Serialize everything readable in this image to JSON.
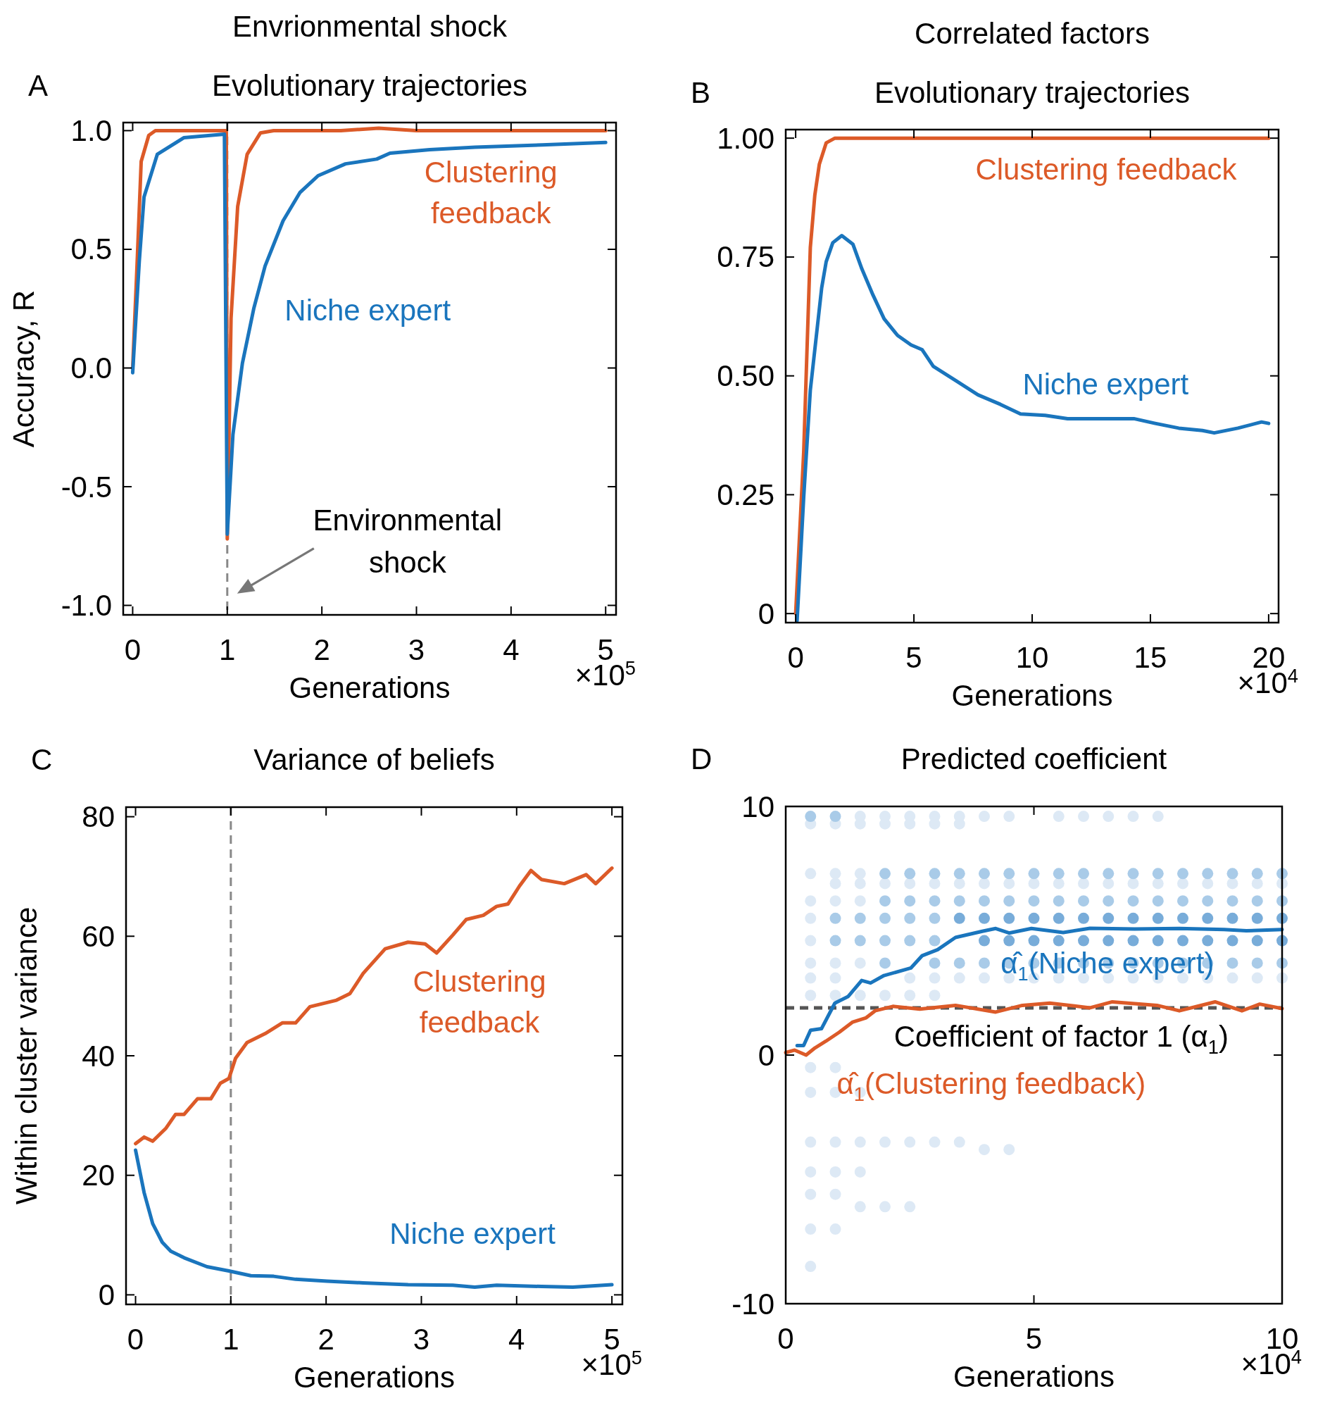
{
  "chart_data": [
    {
      "type": "line",
      "title": "Envrionmental shock",
      "subtitle": "Evolutionary trajectories",
      "xlabel": "Generations",
      "ylabel": "Accuracy, R",
      "xlim": [
        -0.1,
        5.11
      ],
      "xticks": [
        0,
        1,
        2,
        3,
        4,
        5
      ],
      "ylim": [
        -1.04,
        1.034
      ],
      "yticks": [
        {
          "value": 1,
          "label": "1.0"
        },
        {
          "value": 0.5,
          "label": "0.5"
        },
        {
          "value": 0,
          "label": "0.0"
        },
        {
          "value": -0.5,
          "label": "-0.5"
        },
        {
          "value": -1,
          "label": "-1.0"
        }
      ],
      "ref_lines": [
        {
          "axis": "x",
          "value": 1,
          "color": "#888888",
          "line_style": "dashed"
        }
      ],
      "annotations": [
        "A",
        "×10$^{5}$",
        {
          "text": "Environmental shock",
          "x": 1,
          "y": -0.95
        }
      ],
      "series": [
        {
          "name": "Clustering feedback",
          "color": "#dc5a28",
          "x": [
            0,
            0.05,
            0.09,
            0.17,
            0.24,
            0.5,
            0.8,
            0.99,
            1.0,
            1.04,
            1.11,
            1.21,
            1.35,
            1.49,
            1.8,
            2.2,
            2.6,
            3.0,
            3.4,
            3.8,
            4.2,
            4.6,
            5.0
          ],
          "values": [
            0,
            0.47,
            0.87,
            0.98,
            1.0,
            1.0,
            1.0,
            1.0,
            -0.72,
            0.21,
            0.68,
            0.9,
            0.99,
            1.0,
            1.0,
            1.0,
            1.01,
            1.0,
            1.0,
            1.0,
            1.0,
            1.0,
            1.0
          ]
        },
        {
          "name": "Niche expert",
          "color": "#1a75bd",
          "x": [
            0,
            0.07,
            0.12,
            0.26,
            0.54,
            0.97,
            1.0,
            1.06,
            1.16,
            1.28,
            1.4,
            1.59,
            1.77,
            1.96,
            2.25,
            2.58,
            2.72,
            3.14,
            3.62,
            4.33,
            5.0
          ],
          "values": [
            -0.02,
            0.45,
            0.72,
            0.9,
            0.97,
            0.985,
            -0.7,
            -0.28,
            0.02,
            0.25,
            0.43,
            0.62,
            0.74,
            0.81,
            0.86,
            0.88,
            0.905,
            0.92,
            0.93,
            0.94,
            0.95
          ]
        }
      ]
    },
    {
      "type": "line",
      "title": "Correlated factors",
      "subtitle": "Evolutionary trajectories",
      "xlabel": "Generations",
      "xlim": [
        -0.42,
        20.42
      ],
      "xticks": [
        0,
        5,
        10,
        15,
        20
      ],
      "ylim": [
        -0.019,
        1.018
      ],
      "yticks": [
        {
          "value": 1,
          "label": "1.00"
        },
        {
          "value": 0.75,
          "label": "0.75"
        },
        {
          "value": 0.5,
          "label": "0.50"
        },
        {
          "value": 0.25,
          "label": "0.25"
        },
        0
      ],
      "annotations": [
        "B",
        "×10$^{4}$"
      ],
      "series": [
        {
          "name": "Clustering feedback",
          "color": "#dc5a28",
          "x": [
            0,
            0.34,
            0.62,
            0.81,
            1.0,
            1.29,
            1.66,
            4,
            8,
            12,
            16,
            20
          ],
          "values": [
            0,
            0.34,
            0.77,
            0.88,
            0.945,
            0.99,
            1.0,
            1.0,
            1.0,
            1.0,
            1.0,
            1.0
          ]
        },
        {
          "name": "Niche expert",
          "color": "#1a75bd",
          "x": [
            0.06,
            0.34,
            0.62,
            0.91,
            1.1,
            1.29,
            1.57,
            1.95,
            2.42,
            2.8,
            3.27,
            3.74,
            4.31,
            4.88,
            5.35,
            5.82,
            6.77,
            7.71,
            8.66,
            9.51,
            10.55,
            11.5,
            12.4,
            14.3,
            15.2,
            16.2,
            17.2,
            17.7,
            18.7,
            19.7,
            20
          ],
          "values": [
            -0.015,
            0.245,
            0.47,
            0.6,
            0.685,
            0.74,
            0.78,
            0.795,
            0.777,
            0.725,
            0.67,
            0.62,
            0.585,
            0.565,
            0.555,
            0.52,
            0.49,
            0.46,
            0.44,
            0.42,
            0.417,
            0.41,
            0.41,
            0.41,
            0.4,
            0.39,
            0.385,
            0.38,
            0.39,
            0.403,
            0.4
          ]
        }
      ]
    },
    {
      "type": "line",
      "title": "Variance of beliefs",
      "xlabel": "Generations",
      "ylabel": "Within cluster variance",
      "xlim": [
        -0.1,
        5.11
      ],
      "xticks": [
        0,
        1,
        2,
        3,
        4,
        5
      ],
      "ylim": [
        -1.6,
        81.6
      ],
      "yticks": [
        0,
        20,
        40,
        60,
        80
      ],
      "ref_lines": [
        {
          "axis": "x",
          "value": 1,
          "color": "#888888",
          "line_style": "dashed"
        }
      ],
      "annotations": [
        "C",
        "×10$^{5}$"
      ],
      "series": [
        {
          "name": "Clustering feedback",
          "color": "#dc5a28",
          "x": [
            0,
            0.09,
            0.18,
            0.32,
            0.42,
            0.51,
            0.65,
            0.79,
            0.89,
            0.98,
            1.05,
            1.17,
            1.36,
            1.54,
            1.68,
            1.83,
            2.11,
            2.25,
            2.39,
            2.62,
            2.86,
            3.04,
            3.16,
            3.33,
            3.47,
            3.65,
            3.79,
            3.91,
            4.03,
            4.15,
            4.26,
            4.5,
            4.73,
            4.83,
            5.0
          ],
          "values": [
            25.3,
            26.4,
            25.7,
            27.9,
            30.2,
            30.2,
            32.8,
            32.8,
            35.4,
            36.2,
            39.6,
            42.2,
            43.7,
            45.5,
            45.5,
            48.2,
            49.3,
            50.4,
            53.8,
            57.9,
            59.0,
            58.7,
            57.2,
            60.2,
            62.8,
            63.5,
            65.0,
            65.4,
            68.4,
            71.0,
            69.5,
            68.8,
            70.3,
            68.8,
            71.4
          ]
        },
        {
          "name": "Niche expert",
          "color": "#1a75bd",
          "x": [
            0,
            0.09,
            0.18,
            0.28,
            0.37,
            0.51,
            0.75,
            0.98,
            1.21,
            1.45,
            1.68,
            2.01,
            2.39,
            2.86,
            3.33,
            3.56,
            3.79,
            4.26,
            4.59,
            5.0
          ],
          "values": [
            24.2,
            17.1,
            11.9,
            8.8,
            7.3,
            6.2,
            4.7,
            4.0,
            3.2,
            3.1,
            2.6,
            2.3,
            2.0,
            1.7,
            1.6,
            1.3,
            1.6,
            1.4,
            1.3,
            1.7
          ]
        }
      ]
    },
    {
      "type": "line",
      "title": "Predicted coefficient",
      "xlabel": "Generations",
      "xlim": [
        0,
        10
      ],
      "xticks": [
        0,
        5,
        10
      ],
      "ylim": [
        -10,
        10
      ],
      "yticks": [
        10,
        0,
        -10
      ],
      "ref_lines": [
        {
          "axis": "y",
          "value": 1.9,
          "label": "Coefficient of factor 1 (α$_{1}$)",
          "color": "#555555",
          "line_style": "dashed"
        }
      ],
      "annotations": [
        "D",
        "×10$^{4}$"
      ],
      "series": [
        {
          "type": "scatter",
          "color": "#dde9f5",
          "x": [
            0.5,
            1,
            1.5,
            2,
            2.5,
            3,
            3.5,
            1.5,
            2,
            2.5,
            3,
            3.5,
            4,
            4.5,
            5.5,
            6,
            6.5,
            7,
            7.5,
            0.5,
            1,
            1.5,
            1,
            1.5,
            2,
            2.5,
            3,
            3.5,
            4,
            4.5,
            5,
            5.5,
            6,
            6.5,
            7,
            7.5,
            8,
            8.5,
            9,
            9.5,
            10,
            0.5,
            1,
            1.5,
            0.5,
            0.5,
            0.5,
            1,
            1.5,
            0.5,
            1,
            2.5,
            3,
            3.5,
            4,
            4.5,
            5,
            5.5,
            6,
            6.5,
            7,
            7.5,
            8,
            8.5,
            9,
            9.5,
            10,
            0.5,
            1,
            1.5,
            2,
            2.5,
            3,
            0.5,
            1,
            0.5,
            1,
            1.5,
            0.5,
            1,
            1.5,
            2,
            2.5,
            3,
            3.5,
            4,
            4.5,
            0.5,
            1,
            1.5,
            0.5,
            1,
            1.5,
            2,
            2.5,
            0.5,
            1,
            0.5
          ],
          "values": [
            9.3,
            9.3,
            9.3,
            9.3,
            9.3,
            9.3,
            9.3,
            9.6,
            9.6,
            9.6,
            9.6,
            9.6,
            9.6,
            9.6,
            9.6,
            9.6,
            9.6,
            9.6,
            9.6,
            7.3,
            7.3,
            7.3,
            6.9,
            6.9,
            6.9,
            6.9,
            6.9,
            6.9,
            6.9,
            6.9,
            6.9,
            6.9,
            6.9,
            6.9,
            6.9,
            6.9,
            6.9,
            6.9,
            6.9,
            6.9,
            6.9,
            6.2,
            6.2,
            6.2,
            5.5,
            4.6,
            3.7,
            3.7,
            3.7,
            3.1,
            3.1,
            3.1,
            3.1,
            3.1,
            3.1,
            3.1,
            3.1,
            3.1,
            3.1,
            3.1,
            3.1,
            3.1,
            3.1,
            3.1,
            3.1,
            3.1,
            3.1,
            2.4,
            2.4,
            2.4,
            2.4,
            2.4,
            2.4,
            -0.5,
            -0.5,
            -1.5,
            -1.5,
            -1.5,
            -3.5,
            -3.5,
            -3.5,
            -3.5,
            -3.5,
            -3.5,
            -3.5,
            -3.8,
            -3.8,
            -4.7,
            -4.7,
            -4.7,
            -5.6,
            -5.6,
            -6.1,
            -6.1,
            -6.1,
            -7.0,
            -7.0,
            -8.5
          ]
        },
        {
          "type": "scatter",
          "color": "#a9cbe8",
          "x": [
            2,
            2.5,
            3,
            3.5,
            4,
            4.5,
            5,
            5.5,
            6,
            6.5,
            7,
            7.5,
            8,
            8.5,
            9,
            9.5,
            10,
            2,
            2.5,
            3,
            3.5,
            4,
            4.5,
            5,
            5.5,
            6,
            6.5,
            7,
            7.5,
            8,
            8.5,
            9,
            9.5,
            10,
            2,
            3,
            3.5,
            4,
            4.5,
            5,
            5.5,
            6,
            6.5,
            7,
            7.5,
            8,
            8.5,
            9,
            9.5,
            10,
            1,
            1.5,
            2,
            2.5,
            3,
            1,
            1.5,
            2,
            2.5,
            3,
            0.5,
            1
          ],
          "values": [
            7.3,
            7.3,
            7.3,
            7.3,
            7.3,
            7.3,
            7.3,
            7.3,
            7.3,
            7.3,
            7.3,
            7.3,
            7.3,
            7.3,
            7.3,
            7.3,
            7.3,
            6.2,
            6.2,
            6.2,
            6.2,
            6.2,
            6.2,
            6.2,
            6.2,
            6.2,
            6.2,
            6.2,
            6.2,
            6.2,
            6.2,
            6.2,
            6.2,
            6.2,
            3.7,
            3.7,
            3.7,
            3.7,
            3.7,
            3.7,
            3.7,
            3.7,
            3.7,
            3.7,
            3.7,
            3.7,
            3.7,
            3.7,
            3.7,
            3.7,
            5.5,
            5.5,
            5.5,
            5.5,
            5.5,
            4.6,
            4.6,
            4.6,
            4.6,
            4.6,
            9.6,
            9.6
          ]
        },
        {
          "type": "scatter",
          "color": "#78acd9",
          "x": [
            3.5,
            4,
            4.5,
            5,
            5.5,
            6,
            6.5,
            7,
            7.5,
            8,
            8.5,
            9,
            9.5,
            10,
            4,
            4.5,
            5,
            5.5,
            6,
            6.5,
            7,
            7.5,
            8,
            8.5,
            9,
            9.5,
            10
          ],
          "values": [
            5.5,
            5.5,
            5.5,
            5.5,
            5.5,
            5.5,
            5.5,
            5.5,
            5.5,
            5.5,
            5.5,
            5.5,
            5.5,
            5.5,
            4.6,
            4.6,
            4.6,
            4.6,
            4.6,
            4.6,
            4.6,
            4.6,
            4.6,
            4.6,
            4.6,
            4.6,
            4.6
          ]
        },
        {
          "name": "α̂$_{1}$(Niche expert)",
          "color": "#1a75bd",
          "x": [
            0.23,
            0.36,
            0.5,
            0.72,
            0.99,
            1.26,
            1.53,
            1.71,
            1.98,
            2.52,
            2.75,
            3.06,
            3.42,
            3.96,
            4.23,
            4.5,
            4.95,
            5.59,
            6.13,
            7.03,
            7.93,
            8.83,
            9.28,
            10
          ],
          "values": [
            0.38,
            0.38,
            1.0,
            1.06,
            2.09,
            2.36,
            3.0,
            2.9,
            3.2,
            3.5,
            4.0,
            4.24,
            4.73,
            4.98,
            5.09,
            4.91,
            5.09,
            4.93,
            5.1,
            5.07,
            5.09,
            5.05,
            5.0,
            5.05
          ]
        },
        {
          "name": "α̂$_{1}$(Clustering feedback)",
          "color": "#dc5a28",
          "x": [
            0,
            0.18,
            0.41,
            0.59,
            0.81,
            1.08,
            1.35,
            1.62,
            1.8,
            2.16,
            2.7,
            3.42,
            4.23,
            4.77,
            5.32,
            6.13,
            6.58,
            7.48,
            7.93,
            8.65,
            9.19,
            9.55,
            10
          ],
          "values": [
            0.1,
            0.2,
            0,
            0.29,
            0.56,
            0.92,
            1.33,
            1.5,
            1.78,
            1.96,
            1.85,
            2.0,
            1.73,
            2.0,
            2.09,
            1.9,
            2.14,
            2.0,
            1.78,
            2.14,
            1.78,
            2.05,
            1.87
          ]
        }
      ]
    }
  ]
}
